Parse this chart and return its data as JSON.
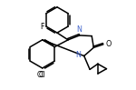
{
  "bg_color": "#ffffff",
  "bond_color": "#000000",
  "heteroatom_color": "#4466cc",
  "label_F": "F",
  "label_Cl": "Cl",
  "label_N1": "N",
  "label_N2": "N",
  "label_O": "O",
  "figsize": [
    1.5,
    0.99
  ],
  "dpi": 100,
  "lw": 1.1
}
